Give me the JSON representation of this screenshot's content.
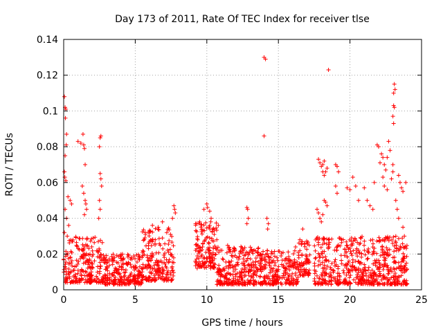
{
  "chart_data": {
    "type": "scatter",
    "title": "Day 173 of 2011, Rate Of TEC Index for receiver tlse",
    "xlabel": "GPS time / hours",
    "ylabel": "ROTI / TECUs",
    "xlim": [
      0,
      25
    ],
    "ylim": [
      0,
      0.14
    ],
    "x_ticks": [
      0,
      5,
      10,
      15,
      20,
      25
    ],
    "x_tick_labels": [
      "0",
      "5",
      "10",
      "15",
      "20",
      "25"
    ],
    "y_ticks": [
      0,
      0.02,
      0.04,
      0.06,
      0.08,
      0.1,
      0.12,
      0.14
    ],
    "y_tick_labels": [
      "0",
      "0.02",
      "0.04",
      "0.06",
      "0.08",
      "0.1",
      "0.12",
      "0.14"
    ],
    "grid": true,
    "marker": "+",
    "color": "#ff0000",
    "series": [
      {
        "name": "ROTI",
        "points": [
          [
            0.05,
            0.108
          ],
          [
            0.1,
            0.102
          ],
          [
            0.15,
            0.101
          ],
          [
            0.12,
            0.096
          ],
          [
            0.2,
            0.087
          ],
          [
            0.18,
            0.081
          ],
          [
            0.1,
            0.075
          ],
          [
            0.05,
            0.066
          ],
          [
            0.08,
            0.063
          ],
          [
            0.15,
            0.061
          ],
          [
            0.3,
            0.052
          ],
          [
            0.45,
            0.05
          ],
          [
            0.55,
            0.048
          ],
          [
            0.1,
            0.045
          ],
          [
            0.2,
            0.04
          ],
          [
            0.35,
            0.036
          ],
          [
            0.05,
            0.032
          ],
          [
            0.25,
            0.03
          ],
          [
            1.0,
            0.083
          ],
          [
            1.2,
            0.082
          ],
          [
            1.35,
            0.087
          ],
          [
            1.4,
            0.081
          ],
          [
            1.45,
            0.079
          ],
          [
            1.5,
            0.07
          ],
          [
            1.3,
            0.058
          ],
          [
            1.4,
            0.054
          ],
          [
            1.5,
            0.05
          ],
          [
            1.55,
            0.048
          ],
          [
            1.6,
            0.045
          ],
          [
            1.45,
            0.042
          ],
          [
            2.55,
            0.085
          ],
          [
            2.6,
            0.086
          ],
          [
            2.5,
            0.08
          ],
          [
            2.55,
            0.065
          ],
          [
            2.6,
            0.062
          ],
          [
            2.65,
            0.058
          ],
          [
            2.5,
            0.05
          ],
          [
            2.55,
            0.045
          ],
          [
            2.45,
            0.04
          ],
          [
            5.7,
            0.032
          ],
          [
            6.2,
            0.036
          ],
          [
            6.6,
            0.035
          ],
          [
            6.9,
            0.038
          ],
          [
            7.2,
            0.032
          ],
          [
            6.4,
            0.028
          ],
          [
            7.7,
            0.047
          ],
          [
            7.75,
            0.045
          ],
          [
            7.8,
            0.043
          ],
          [
            7.6,
            0.04
          ],
          [
            9.3,
            0.037
          ],
          [
            9.5,
            0.038
          ],
          [
            9.8,
            0.045
          ],
          [
            10.0,
            0.048
          ],
          [
            10.05,
            0.046
          ],
          [
            10.2,
            0.044
          ],
          [
            10.3,
            0.04
          ],
          [
            10.8,
            0.036
          ],
          [
            9.2,
            0.016
          ],
          [
            9.4,
            0.014
          ],
          [
            12.8,
            0.046
          ],
          [
            12.85,
            0.045
          ],
          [
            12.9,
            0.04
          ],
          [
            12.8,
            0.037
          ],
          [
            14.0,
            0.13
          ],
          [
            14.1,
            0.129
          ],
          [
            14.0,
            0.086
          ],
          [
            14.2,
            0.04
          ],
          [
            14.3,
            0.037
          ],
          [
            14.25,
            0.034
          ],
          [
            16.7,
            0.034
          ],
          [
            16.5,
            0.028
          ],
          [
            16.2,
            0.024
          ],
          [
            17.7,
            0.045
          ],
          [
            17.8,
            0.043
          ],
          [
            17.9,
            0.04
          ],
          [
            18.0,
            0.038
          ],
          [
            18.1,
            0.042
          ],
          [
            18.2,
            0.05
          ],
          [
            18.3,
            0.049
          ],
          [
            18.4,
            0.047
          ],
          [
            18.5,
            0.123
          ],
          [
            18.4,
            0.068
          ],
          [
            18.3,
            0.066
          ],
          [
            18.2,
            0.064
          ],
          [
            18.1,
            0.066
          ],
          [
            18.2,
            0.072
          ],
          [
            18.1,
            0.07
          ],
          [
            18.0,
            0.069
          ],
          [
            17.9,
            0.071
          ],
          [
            17.8,
            0.073
          ],
          [
            19.0,
            0.07
          ],
          [
            19.1,
            0.069
          ],
          [
            19.2,
            0.066
          ],
          [
            19.0,
            0.058
          ],
          [
            19.1,
            0.054
          ],
          [
            19.8,
            0.057
          ],
          [
            20.0,
            0.056
          ],
          [
            20.2,
            0.063
          ],
          [
            20.4,
            0.058
          ],
          [
            20.6,
            0.05
          ],
          [
            21.0,
            0.057
          ],
          [
            21.2,
            0.05
          ],
          [
            21.4,
            0.047
          ],
          [
            21.6,
            0.045
          ],
          [
            21.7,
            0.06
          ],
          [
            21.9,
            0.081
          ],
          [
            22.0,
            0.08
          ],
          [
            22.2,
            0.076
          ],
          [
            22.3,
            0.074
          ],
          [
            22.1,
            0.071
          ],
          [
            22.4,
            0.07
          ],
          [
            22.5,
            0.067
          ],
          [
            22.6,
            0.074
          ],
          [
            22.7,
            0.083
          ],
          [
            22.8,
            0.078
          ],
          [
            22.3,
            0.063
          ],
          [
            22.4,
            0.058
          ],
          [
            22.6,
            0.056
          ],
          [
            22.9,
            0.062
          ],
          [
            23.0,
            0.066
          ],
          [
            23.05,
            0.103
          ],
          [
            23.1,
            0.102
          ],
          [
            23.0,
            0.097
          ],
          [
            23.05,
            0.093
          ],
          [
            23.1,
            0.115
          ],
          [
            23.15,
            0.112
          ],
          [
            23.05,
            0.11
          ],
          [
            23.0,
            0.07
          ],
          [
            23.4,
            0.064
          ],
          [
            23.5,
            0.06
          ],
          [
            23.6,
            0.057
          ],
          [
            23.7,
            0.055
          ],
          [
            23.9,
            0.06
          ],
          [
            23.2,
            0.05
          ],
          [
            23.3,
            0.045
          ],
          [
            23.4,
            0.04
          ],
          [
            23.7,
            0.035
          ],
          [
            23.8,
            0.03
          ]
        ]
      }
    ],
    "dense_bands": [
      {
        "x_range": [
          0,
          2.8
        ],
        "y_range": [
          0.004,
          0.03
        ]
      },
      {
        "x_range": [
          2.8,
          5.5
        ],
        "y_range": [
          0.003,
          0.02
        ]
      },
      {
        "x_range": [
          5.5,
          7.7
        ],
        "y_range": [
          0.005,
          0.035
        ]
      },
      {
        "x_range": [
          9.2,
          10.7
        ],
        "y_range": [
          0.012,
          0.038
        ]
      },
      {
        "x_range": [
          10.7,
          13.7
        ],
        "y_range": [
          0.003,
          0.025
        ]
      },
      {
        "x_range": [
          13.7,
          16.4
        ],
        "y_range": [
          0.003,
          0.022
        ]
      },
      {
        "x_range": [
          16.4,
          17.2
        ],
        "y_range": [
          0.008,
          0.028
        ]
      },
      {
        "x_range": [
          17.5,
          24.0
        ],
        "y_range": [
          0.003,
          0.03
        ]
      }
    ]
  }
}
